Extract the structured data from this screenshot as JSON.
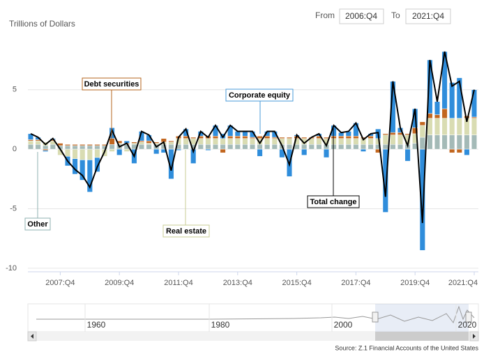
{
  "chart_data": {
    "type": "bar",
    "y_axis_label": "Trillions of Dollars",
    "range": {
      "from_label": "From",
      "from": "2006:Q4",
      "to_label": "To",
      "to": "2021:Q4"
    },
    "categories": [
      null,
      null,
      null,
      null,
      "2007:Q4",
      null,
      null,
      null,
      null,
      null,
      null,
      null,
      "2009:Q4",
      null,
      null,
      null,
      null,
      null,
      null,
      null,
      "2011:Q4",
      null,
      null,
      null,
      null,
      null,
      null,
      null,
      "2013:Q4",
      null,
      null,
      null,
      null,
      null,
      null,
      null,
      "2015:Q4",
      null,
      null,
      null,
      null,
      null,
      null,
      null,
      "2017:Q4",
      null,
      null,
      null,
      null,
      null,
      null,
      null,
      "2019:Q4",
      null,
      null,
      null,
      null,
      null,
      null,
      null,
      "2021:Q4"
    ],
    "series": [
      {
        "name": "Other",
        "color": "#a4bab7",
        "values": [
          0.4,
          0.4,
          0.3,
          0.4,
          0.3,
          0.3,
          0.3,
          0.3,
          0.3,
          0.3,
          0.3,
          0.4,
          0.4,
          0.4,
          0.4,
          0.4,
          0.4,
          0.4,
          0.4,
          0.4,
          0.4,
          0.4,
          0.4,
          0.4,
          0.4,
          0.4,
          0.4,
          0.4,
          0.4,
          0.4,
          0.4,
          0.4,
          0.4,
          0.4,
          0.4,
          0.4,
          0.4,
          0.4,
          0.4,
          0.4,
          0.4,
          0.4,
          0.4,
          0.4,
          0.4,
          0.4,
          0.4,
          0.4,
          0.4,
          0.4,
          0.4,
          0.4,
          0.5,
          1.0,
          1.2,
          1.2,
          1.2,
          1.2,
          1.2,
          1.2,
          1.2
        ]
      },
      {
        "name": "Real estate",
        "color": "#d9dcb2",
        "values": [
          0.3,
          0.3,
          0.3,
          0.3,
          -0.5,
          -0.6,
          -0.8,
          -0.9,
          -0.9,
          -0.7,
          -0.6,
          -0.2,
          0.1,
          -0.2,
          0.1,
          0.2,
          0.1,
          0.1,
          0.2,
          0.2,
          0.5,
          0.5,
          0.5,
          0.5,
          0.5,
          0.5,
          0.5,
          0.5,
          0.5,
          0.5,
          0.5,
          0.5,
          0.5,
          0.5,
          0.5,
          0.5,
          0.5,
          0.5,
          0.5,
          0.5,
          0.5,
          0.5,
          0.5,
          0.5,
          0.5,
          0.5,
          0.5,
          0.5,
          0.8,
          0.8,
          0.8,
          0.8,
          0.8,
          1.0,
          1.4,
          1.4,
          1.4,
          1.4,
          1.4,
          1.4,
          1.4
        ]
      },
      {
        "name": "Debt securities",
        "color": "#c2661f",
        "values": [
          0.1,
          0.1,
          -0.1,
          0.1,
          0.2,
          0.1,
          0.1,
          0.1,
          0.1,
          0.1,
          0.1,
          0.5,
          0.2,
          0.1,
          0.1,
          0.1,
          0.2,
          0.1,
          0.3,
          0.1,
          0.2,
          0.2,
          0.1,
          0.2,
          0.2,
          0.2,
          -0.3,
          0.2,
          0.2,
          0.2,
          0.1,
          0.2,
          0.2,
          0.1,
          0.1,
          0.1,
          0.2,
          0.1,
          0.1,
          0.2,
          0.1,
          0.2,
          0.2,
          0.2,
          0.2,
          0.1,
          0.2,
          -0.3,
          0.1,
          0.2,
          0.2,
          0.1,
          0.5,
          0.3,
          0.4,
          0.3,
          0.8,
          -0.3,
          -0.3,
          0.2,
          0.1
        ]
      },
      {
        "name": "Corporate equity",
        "color": "#2f8ddb",
        "values": [
          0.5,
          0.2,
          -0.1,
          0.1,
          0.0,
          -0.8,
          -1.3,
          -1.7,
          -2.7,
          -1.2,
          0.0,
          0.9,
          -0.5,
          0.2,
          -1.2,
          0.8,
          0.5,
          -0.4,
          -0.3,
          -2.5,
          -0.1,
          0.6,
          -1.2,
          0.4,
          -0.1,
          0.9,
          0.4,
          0.9,
          0.4,
          0.4,
          0.5,
          -0.6,
          0.4,
          0.5,
          -0.7,
          -2.3,
          0.1,
          -0.5,
          0.0,
          0.2,
          -0.7,
          0.9,
          0.3,
          0.4,
          1.1,
          -0.2,
          0.2,
          0.8,
          -5.3,
          4.3,
          0.4,
          -1.0,
          1.6,
          -8.5,
          4.5,
          1.1,
          4.8,
          3.0,
          3.4,
          -0.5,
          2.3
        ]
      },
      {
        "name": "Total change",
        "type": "line",
        "color": "#000000",
        "values": [
          1.3,
          1.0,
          0.4,
          0.9,
          0.0,
          -1.0,
          -1.7,
          -2.2,
          -3.2,
          -1.5,
          -0.2,
          1.6,
          0.2,
          0.5,
          -0.6,
          1.5,
          1.2,
          0.2,
          0.6,
          -1.8,
          1.0,
          1.7,
          -0.2,
          1.5,
          1.0,
          2.0,
          1.0,
          2.0,
          1.5,
          1.5,
          1.5,
          0.5,
          1.5,
          1.5,
          0.3,
          -1.3,
          1.2,
          0.5,
          1.0,
          1.3,
          0.3,
          2.0,
          1.4,
          1.5,
          2.2,
          0.8,
          1.3,
          1.4,
          -4.0,
          5.7,
          1.8,
          0.3,
          3.4,
          -6.2,
          7.5,
          4.0,
          8.2,
          5.3,
          5.7,
          2.3,
          5.0
        ]
      }
    ],
    "ylim": [
      -10.3,
      9.9
    ],
    "yticks": [
      5,
      0,
      -5,
      -10
    ],
    "grid": true,
    "navigator": {
      "labels": [
        "1960",
        "1980",
        "2000",
        "2020"
      ]
    },
    "source": "Source: Z.1 Financial Accounts of the United States"
  }
}
